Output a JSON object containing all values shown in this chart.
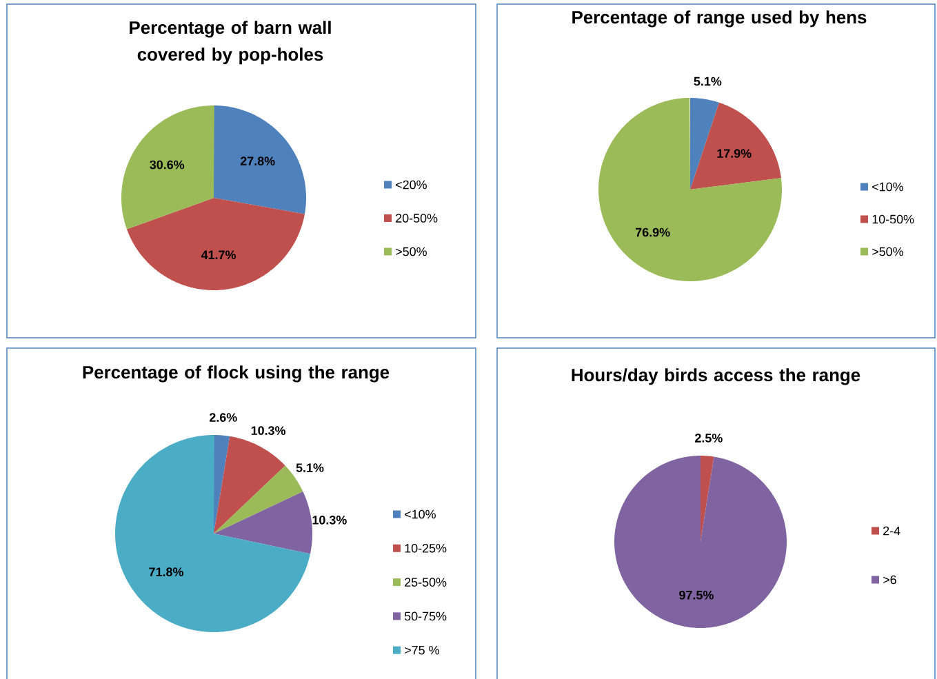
{
  "chart_data": [
    {
      "type": "pie",
      "title": "Percentage of barn wall covered by pop-holes",
      "categories": [
        "<20%",
        "20-50%",
        ">50%"
      ],
      "values": [
        27.8,
        41.7,
        30.6
      ],
      "colors": [
        "#4f81bd",
        "#c0504d",
        "#9bbb59"
      ],
      "value_labels": [
        "27.8%",
        "41.7%",
        "30.6%"
      ],
      "legend": "right"
    },
    {
      "type": "pie",
      "title": "Percentage of range used by hens",
      "categories": [
        "<10%",
        "10-50%",
        ">50%"
      ],
      "values": [
        5.1,
        17.9,
        76.9
      ],
      "colors": [
        "#4f81bd",
        "#c0504d",
        "#9bbb59"
      ],
      "value_labels": [
        "5.1%",
        "17.9%",
        "76.9%"
      ],
      "legend": "right"
    },
    {
      "type": "pie",
      "title": "Percentage of flock using the range",
      "categories": [
        "<10%",
        "10-25%",
        "25-50%",
        "50-75%",
        ">75 %"
      ],
      "values": [
        2.6,
        10.3,
        5.1,
        10.3,
        71.8
      ],
      "colors": [
        "#4f81bd",
        "#c0504d",
        "#9bbb59",
        "#8064a2",
        "#4bacc6"
      ],
      "value_labels": [
        "2.6%",
        "10.3%",
        "5.1%",
        "10.3%",
        "71.8%"
      ],
      "legend": "right"
    },
    {
      "type": "pie",
      "title": "Hours/day birds access the range",
      "categories": [
        "2-4",
        ">6"
      ],
      "values": [
        2.5,
        97.5
      ],
      "colors": [
        "#c0504d",
        "#8064a2"
      ],
      "value_labels": [
        "2.5%",
        "97.5%"
      ],
      "legend": "right"
    }
  ]
}
